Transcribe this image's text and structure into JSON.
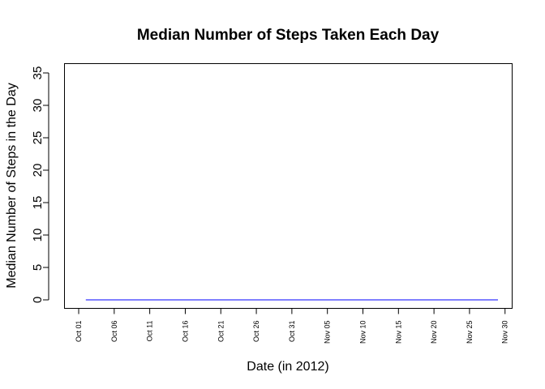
{
  "chart_data": {
    "type": "line",
    "title": "Median Number of Steps Taken Each Day",
    "xlabel": "Date (in 2012)",
    "ylabel": "Median Number of Steps in the Day",
    "ylim": [
      0,
      35
    ],
    "yticks": [
      0,
      5,
      10,
      15,
      20,
      25,
      30,
      35
    ],
    "xlim": [
      "2012-09-29",
      "2012-12-01"
    ],
    "xticks": [
      {
        "date": "2012-10-01",
        "label": "Oct 01"
      },
      {
        "date": "2012-10-06",
        "label": "Oct 06"
      },
      {
        "date": "2012-10-11",
        "label": "Oct 11"
      },
      {
        "date": "2012-10-16",
        "label": "Oct 16"
      },
      {
        "date": "2012-10-21",
        "label": "Oct 21"
      },
      {
        "date": "2012-10-26",
        "label": "Oct 26"
      },
      {
        "date": "2012-10-31",
        "label": "Oct 31"
      },
      {
        "date": "2012-11-05",
        "label": "Nov 05"
      },
      {
        "date": "2012-11-10",
        "label": "Nov 10"
      },
      {
        "date": "2012-11-15",
        "label": "Nov 15"
      },
      {
        "date": "2012-11-20",
        "label": "Nov 20"
      },
      {
        "date": "2012-11-25",
        "label": "Nov 25"
      },
      {
        "date": "2012-11-30",
        "label": "Nov 30"
      }
    ],
    "series": [
      {
        "color": "#0000ff",
        "x": [
          "2012-10-02",
          "2012-11-29"
        ],
        "y": [
          0,
          0
        ]
      }
    ],
    "grid": false,
    "legend": "none"
  }
}
